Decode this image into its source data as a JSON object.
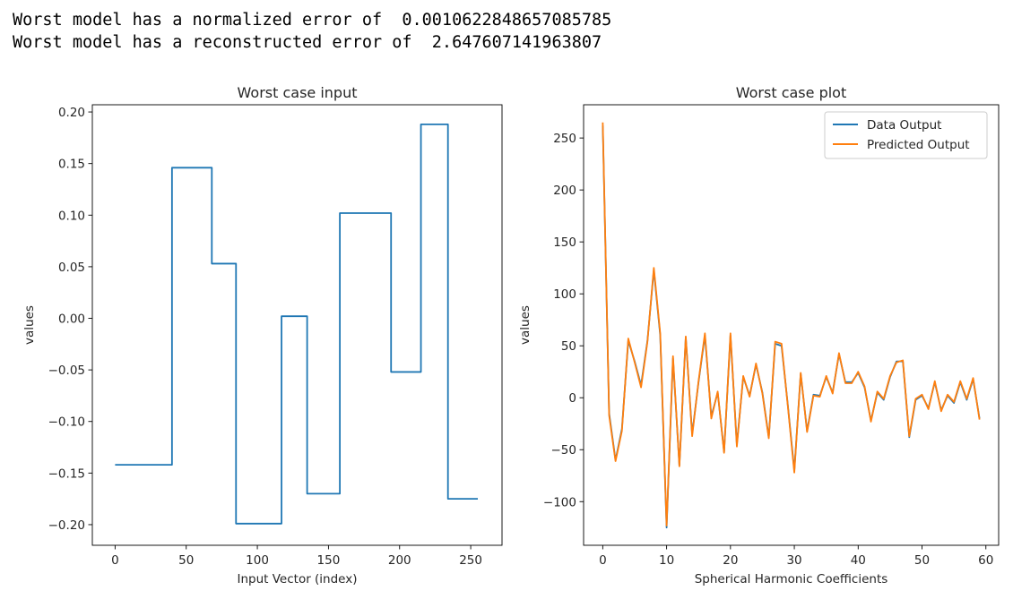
{
  "console": {
    "line1": "Worst model has a normalized error of  0.0010622848657085785",
    "line2": "Worst model has a reconstructed error of  2.647607141963807"
  },
  "chart_data": [
    {
      "type": "line",
      "title": "Worst case input",
      "xlabel": "Input Vector (index)",
      "ylabel": "values",
      "xlim": [
        -16,
        272
      ],
      "ylim": [
        -0.22,
        0.207
      ],
      "x_ticks": [
        0,
        50,
        100,
        150,
        200,
        250
      ],
      "y_ticks": [
        -0.2,
        -0.15,
        -0.1,
        -0.05,
        0.0,
        0.05,
        0.1,
        0.15,
        0.2
      ],
      "x_tick_labels": [
        "0",
        "50",
        "100",
        "150",
        "200",
        "250"
      ],
      "y_tick_labels": [
        "−0.20",
        "−0.15",
        "−0.10",
        "−0.05",
        "0.00",
        "0.05",
        "0.10",
        "0.15",
        "0.20"
      ],
      "series": [
        {
          "color": "#1f77b4",
          "x": [
            0,
            40,
            40,
            68,
            68,
            85,
            85,
            117,
            117,
            135,
            135,
            158,
            158,
            194,
            194,
            215,
            215,
            234,
            234,
            255
          ],
          "y": [
            -0.142,
            -0.142,
            0.146,
            0.146,
            0.053,
            0.053,
            -0.199,
            -0.199,
            0.002,
            0.002,
            -0.17,
            -0.17,
            0.102,
            0.102,
            -0.052,
            -0.052,
            0.188,
            0.188,
            -0.175,
            -0.175
          ]
        }
      ],
      "grid": false
    },
    {
      "type": "line",
      "title": "Worst case plot",
      "xlabel": "Spherical Harmonic Coefficients",
      "ylabel": "values",
      "xlim": [
        -3,
        62
      ],
      "ylim": [
        -142,
        282
      ],
      "x_ticks": [
        0,
        10,
        20,
        30,
        40,
        50,
        60
      ],
      "y_ticks": [
        -100,
        -50,
        0,
        50,
        100,
        150,
        200,
        250
      ],
      "x_tick_labels": [
        "0",
        "10",
        "20",
        "30",
        "40",
        "50",
        "60"
      ],
      "y_tick_labels": [
        "−100",
        "−50",
        "0",
        "50",
        "100",
        "150",
        "200",
        "250"
      ],
      "legend_position": "top-right",
      "series": [
        {
          "name": "Data Output",
          "color": "#1f77b4",
          "x": [
            0,
            1,
            2,
            3,
            4,
            5,
            6,
            7,
            8,
            9,
            10,
            11,
            12,
            13,
            14,
            15,
            16,
            17,
            18,
            19,
            20,
            21,
            22,
            23,
            24,
            25,
            26,
            27,
            28,
            29,
            30,
            31,
            32,
            33,
            34,
            35,
            36,
            37,
            38,
            39,
            40,
            41,
            42,
            43,
            44,
            45,
            46,
            47,
            48,
            49,
            50,
            51,
            52,
            53,
            54,
            55,
            56,
            57,
            58,
            59
          ],
          "y": [
            262,
            -15,
            -60,
            -30,
            55,
            35,
            12,
            55,
            123,
            60,
            -125,
            38,
            -65,
            58,
            -35,
            15,
            60,
            -18,
            5,
            -52,
            60,
            -45,
            20,
            2,
            32,
            5,
            -38,
            52,
            50,
            -8,
            -70,
            23,
            -32,
            3,
            2,
            20,
            5,
            42,
            15,
            15,
            24,
            10,
            -22,
            5,
            -2,
            20,
            35,
            35,
            -38,
            -2,
            2,
            -10,
            15,
            -12,
            2,
            -5,
            15,
            -2,
            18,
            -20
          ]
        },
        {
          "name": "Predicted Output",
          "color": "#ff7f0e",
          "x": [
            0,
            1,
            2,
            3,
            4,
            5,
            6,
            7,
            8,
            9,
            10,
            11,
            12,
            13,
            14,
            15,
            16,
            17,
            18,
            19,
            20,
            21,
            22,
            23,
            24,
            25,
            26,
            27,
            28,
            29,
            30,
            31,
            32,
            33,
            34,
            35,
            36,
            37,
            38,
            39,
            40,
            41,
            42,
            43,
            44,
            45,
            46,
            47,
            48,
            49,
            50,
            51,
            52,
            53,
            54,
            55,
            56,
            57,
            58,
            59
          ],
          "y": [
            265,
            -17,
            -61,
            -32,
            57,
            34,
            10,
            54,
            125,
            62,
            -123,
            40,
            -66,
            59,
            -37,
            16,
            62,
            -20,
            6,
            -53,
            62,
            -47,
            21,
            1,
            33,
            4,
            -39,
            54,
            52,
            -9,
            -72,
            24,
            -33,
            2,
            1,
            21,
            4,
            43,
            14,
            14,
            25,
            11,
            -23,
            6,
            -1,
            21,
            34,
            36,
            -37,
            -1,
            3,
            -11,
            16,
            -13,
            3,
            -4,
            16,
            -1,
            19,
            -21
          ]
        }
      ],
      "grid": false
    }
  ]
}
